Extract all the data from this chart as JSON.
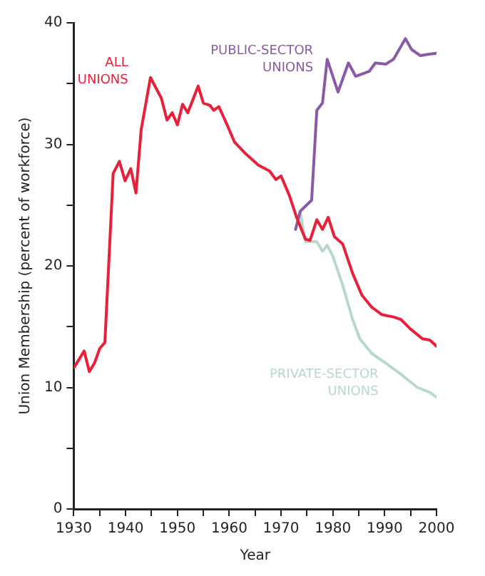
{
  "chart_data": {
    "type": "line",
    "xlabel": "Year",
    "ylabel": "Union Membership (percent of workforce)",
    "xlim": [
      1930,
      2000
    ],
    "xticks": [
      1930,
      {
        "value": 1935,
        "label": null
      },
      1940,
      {
        "value": 1945,
        "label": null
      },
      1950,
      {
        "value": 1955,
        "label": null
      },
      1960,
      {
        "value": 1965,
        "label": null
      },
      1970,
      {
        "value": 1975,
        "label": null
      },
      1980,
      {
        "value": 1985,
        "label": null
      },
      1990,
      {
        "value": 1995,
        "label": null
      },
      2000
    ],
    "ylim": [
      0,
      40
    ],
    "yticks": [
      0,
      {
        "value": 5,
        "label": null
      },
      10,
      {
        "value": 15,
        "label": null
      },
      20,
      {
        "value": 25,
        "label": null
      },
      30,
      {
        "value": 35,
        "label": null
      },
      40
    ],
    "grid": false,
    "legend": false,
    "marker": "none",
    "line_style": "solid",
    "series": [
      {
        "name": "ALL UNIONS",
        "color": "#e8203a",
        "x": [
          1930,
          1932,
          1933,
          1934,
          1935,
          1936,
          1937.6,
          1938.8,
          1939.9,
          1941,
          1942,
          1943,
          1944.8,
          1946.9,
          1948,
          1949,
          1950,
          1951,
          1952,
          1954,
          1955,
          1956.3,
          1957,
          1958,
          1959.6,
          1961,
          1963,
          1965.6,
          1967.8,
          1969,
          1970,
          1971.6,
          1973,
          1974.7,
          1975.6,
          1976.9,
          1978,
          1979.1,
          1980.3,
          1981.9,
          1983.8,
          1985.6,
          1987.5,
          1989.4,
          1991.7,
          1993.1,
          1995,
          1997.3,
          1998.7,
          2000
        ],
        "values": [
          11.6,
          13.0,
          11.3,
          12.0,
          13.2,
          13.7,
          27.6,
          28.6,
          27,
          28,
          26,
          31.2,
          35.5,
          33.8,
          32,
          32.6,
          31.6,
          33.3,
          32.6,
          34.8,
          33.4,
          33.2,
          32.8,
          33.1,
          31.6,
          30.2,
          29.3,
          28.3,
          27.8,
          27.1,
          27.4,
          25.8,
          24,
          22.2,
          22.1,
          23.8,
          23,
          24,
          22.4,
          21.8,
          19.4,
          17.6,
          16.6,
          16.0,
          15.8,
          15.6,
          14.8,
          14,
          13.9,
          13.4
        ]
      },
      {
        "name": "PUBLIC-SECTOR UNIONS",
        "color": "#8a5aa8",
        "x": [
          1972.8,
          1973.7,
          1975.9,
          1976.9,
          1978,
          1978.9,
          1981,
          1983,
          1984.4,
          1987,
          1988.2,
          1990.2,
          1991.7,
          1994,
          1995.2,
          1996.9,
          1998.3,
          2000
        ],
        "values": [
          23,
          24.5,
          25.4,
          32.8,
          33.4,
          37.0,
          34.3,
          36.7,
          35.6,
          36,
          36.7,
          36.6,
          37.0,
          38.7,
          37.8,
          37.3,
          37.4,
          37.5
        ]
      },
      {
        "name": "PRIVATE-SECTOR UNIONS",
        "color": "#b8d8cc",
        "x": [
          1973.7,
          1974.7,
          1976.9,
          1978,
          1978.9,
          1980,
          1981.9,
          1983.8,
          1985.2,
          1987.5,
          1990.2,
          1993.4,
          1996.3,
          1998.7,
          2000
        ],
        "values": [
          24.4,
          22,
          22,
          21.2,
          21.7,
          20.8,
          18.4,
          15.6,
          14,
          12.8,
          12,
          11,
          10,
          9.6,
          9.2
        ]
      }
    ]
  }
}
